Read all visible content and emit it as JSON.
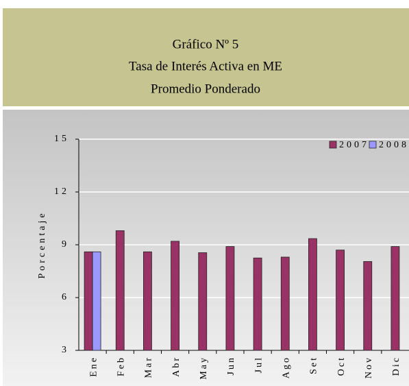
{
  "chart_data": {
    "type": "bar",
    "title": [
      "Gráfico Nº 5",
      "Tasa de Interés Activa en ME",
      "Promedio Ponderado"
    ],
    "ylabel": "Porcentaje",
    "categories": [
      "Ene",
      "Feb",
      "Mar",
      "Abr",
      "May",
      "Jun",
      "Jul",
      "Ago",
      "Set",
      "Oct",
      "Nov",
      "Dic"
    ],
    "series": [
      {
        "name": "2007",
        "color": "#993366",
        "values": [
          8.6,
          9.8,
          8.6,
          9.2,
          8.55,
          8.9,
          8.25,
          8.3,
          9.35,
          8.7,
          8.05,
          8.9
        ]
      },
      {
        "name": "2008",
        "color": "#9999ff",
        "values": [
          8.6,
          null,
          null,
          null,
          null,
          null,
          null,
          null,
          null,
          null,
          null,
          null
        ]
      }
    ],
    "ylim": [
      3,
      15
    ],
    "yticks": [
      3,
      6,
      9,
      12,
      15
    ],
    "grid": true,
    "legend": "top-right"
  }
}
